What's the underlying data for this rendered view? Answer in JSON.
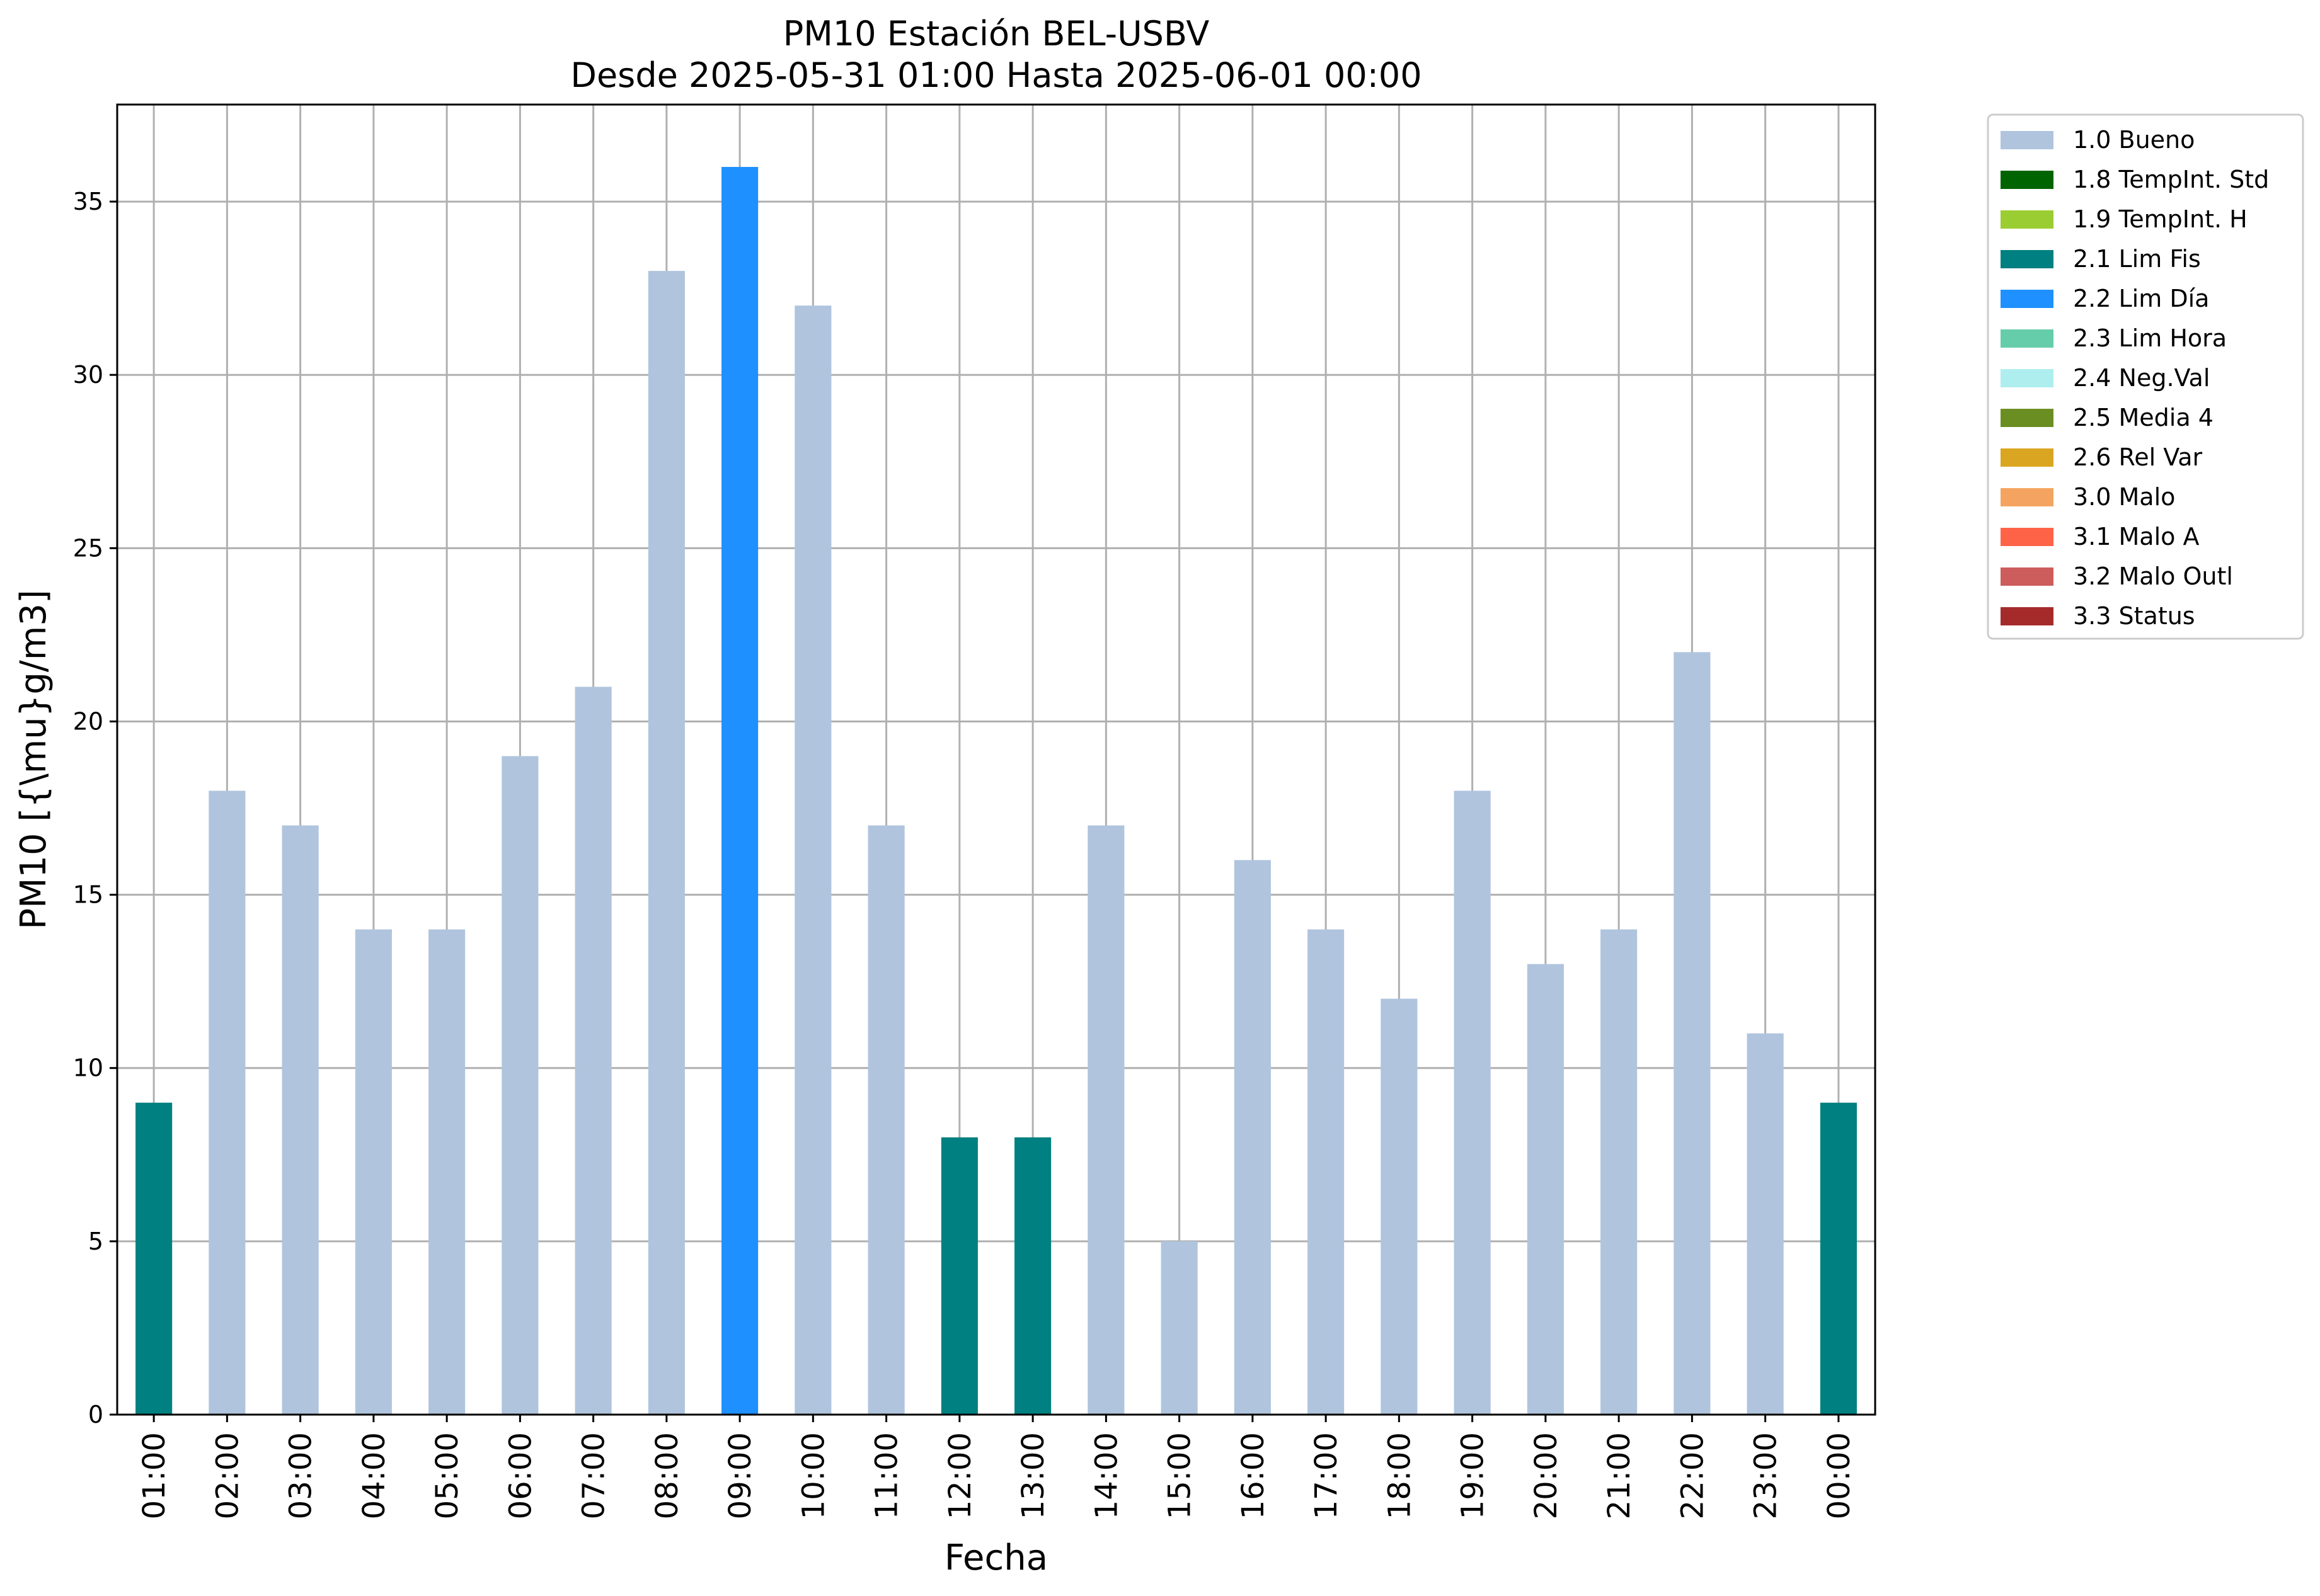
{
  "chart_data": {
    "type": "bar",
    "title": "PM10 Estación BEL-USBV",
    "subtitle": "Desde 2025-05-31 01:00 Hasta 2025-06-01 00:00",
    "xlabel": "Fecha",
    "ylabel": "PM10 [{\\mu}g/m3]",
    "ylim": [
      0,
      37.8
    ],
    "yticks": [
      0,
      5,
      10,
      15,
      20,
      25,
      30,
      35
    ],
    "grid": true,
    "legend_position": "outside-right-top",
    "categories": [
      "01:00",
      "02:00",
      "03:00",
      "04:00",
      "05:00",
      "06:00",
      "07:00",
      "08:00",
      "09:00",
      "10:00",
      "11:00",
      "12:00",
      "13:00",
      "14:00",
      "15:00",
      "16:00",
      "17:00",
      "18:00",
      "19:00",
      "20:00",
      "21:00",
      "22:00",
      "23:00",
      "00:00"
    ],
    "values": [
      9,
      18,
      17,
      14,
      14,
      19,
      21,
      33,
      36,
      32,
      17,
      8,
      8,
      17,
      5,
      16,
      14,
      12,
      18,
      13,
      14,
      22,
      11,
      9
    ],
    "flags": [
      "2.1 Lim Fis",
      "1.0 Bueno",
      "1.0 Bueno",
      "1.0 Bueno",
      "1.0 Bueno",
      "1.0 Bueno",
      "1.0 Bueno",
      "1.0 Bueno",
      "2.2 Lim Día",
      "1.0 Bueno",
      "1.0 Bueno",
      "2.1 Lim Fis",
      "2.1 Lim Fis",
      "1.0 Bueno",
      "1.0 Bueno",
      "1.0 Bueno",
      "1.0 Bueno",
      "1.0 Bueno",
      "1.0 Bueno",
      "1.0 Bueno",
      "1.0 Bueno",
      "1.0 Bueno",
      "1.0 Bueno",
      "2.1 Lim Fis"
    ],
    "legend": [
      {
        "label": "1.0 Bueno",
        "color": "#b0c4de"
      },
      {
        "label": "1.8 TempInt. Std",
        "color": "#006400"
      },
      {
        "label": "1.9 TempInt. H",
        "color": "#9acd32"
      },
      {
        "label": "2.1 Lim Fis",
        "color": "#008080"
      },
      {
        "label": "2.2 Lim Día",
        "color": "#1e90ff"
      },
      {
        "label": "2.3 Lim Hora",
        "color": "#66cdaa"
      },
      {
        "label": "2.4 Neg.Val",
        "color": "#afeeee"
      },
      {
        "label": "2.5 Media 4",
        "color": "#6b8e23"
      },
      {
        "label": "2.6 Rel Var",
        "color": "#daa520"
      },
      {
        "label": "3.0 Malo",
        "color": "#f4a460"
      },
      {
        "label": "3.1 Malo A",
        "color": "#ff6347"
      },
      {
        "label": "3.2 Malo Outl",
        "color": "#cd5c5c"
      },
      {
        "label": "3.3 Status",
        "color": "#a52a2a"
      }
    ]
  }
}
